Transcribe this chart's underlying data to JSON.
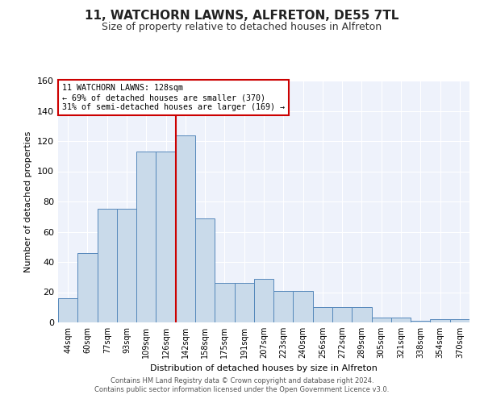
{
  "title1": "11, WATCHORN LAWNS, ALFRETON, DE55 7TL",
  "title2": "Size of property relative to detached houses in Alfreton",
  "xlabel": "Distribution of detached houses by size in Alfreton",
  "ylabel": "Number of detached properties",
  "bar_labels": [
    "44sqm",
    "60sqm",
    "77sqm",
    "93sqm",
    "109sqm",
    "126sqm",
    "142sqm",
    "158sqm",
    "175sqm",
    "191sqm",
    "207sqm",
    "223sqm",
    "240sqm",
    "256sqm",
    "272sqm",
    "289sqm",
    "305sqm",
    "321sqm",
    "338sqm",
    "354sqm",
    "370sqm"
  ],
  "bar_values": [
    16,
    46,
    75,
    75,
    113,
    113,
    124,
    69,
    26,
    26,
    29,
    21,
    21,
    10,
    10,
    10,
    3,
    3,
    1,
    2,
    2
  ],
  "bar_color": "#c9daea",
  "bar_edge_color": "#5588bb",
  "vline_x": 6,
  "vline_color": "#cc0000",
  "annotation_title": "11 WATCHORN LAWNS: 128sqm",
  "annotation_line1": "← 69% of detached houses are smaller (370)",
  "annotation_line2": "31% of semi-detached houses are larger (169) →",
  "annotation_box_color": "#ffffff",
  "annotation_box_edge": "#cc0000",
  "footer1": "Contains HM Land Registry data © Crown copyright and database right 2024.",
  "footer2": "Contains public sector information licensed under the Open Government Licence v3.0.",
  "bg_color": "#eef2fb",
  "ylim": [
    0,
    160
  ],
  "yticks": [
    0,
    20,
    40,
    60,
    80,
    100,
    120,
    140,
    160
  ]
}
